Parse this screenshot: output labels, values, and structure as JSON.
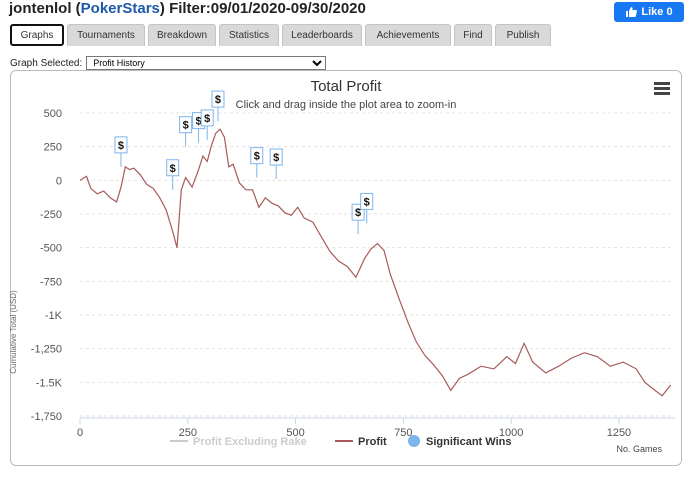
{
  "header": {
    "player": "jontenlol",
    "site": "PokerStars",
    "filter": "Filter:09/01/2020-09/30/2020",
    "like_label": "Like 0"
  },
  "tabs": [
    {
      "label": "Graphs",
      "active": true
    },
    {
      "label": "Tournaments",
      "active": false
    },
    {
      "label": "Breakdown",
      "active": false
    },
    {
      "label": "Statistics",
      "active": false
    },
    {
      "label": "Leaderboards",
      "active": false
    },
    {
      "label": "Achievements",
      "active": false
    },
    {
      "label": "Find",
      "active": false
    },
    {
      "label": "Publish",
      "active": false
    }
  ],
  "graph_selector": {
    "label": "Graph Selected:",
    "value": "Profit History"
  },
  "chart_data": {
    "type": "line",
    "title": "Total Profit",
    "subtitle": "Click and drag inside the plot area to zoom-in",
    "xlabel": "No. Games",
    "ylabel": "Cumulative Total (USD)",
    "xlim": [
      0,
      1380
    ],
    "ylim": [
      -1750,
      500
    ],
    "x_ticks": [
      0,
      250,
      500,
      750,
      1000,
      1250
    ],
    "x_tick_labels": [
      "0",
      "250",
      "500",
      "750",
      "1000",
      "1250"
    ],
    "y_ticks": [
      500,
      250,
      0,
      -250,
      -500,
      -750,
      -1000,
      -1250,
      -1500,
      -1750
    ],
    "y_tick_labels": [
      "500",
      "250",
      "0",
      "-250",
      "-500",
      "-750",
      "-1K",
      "-1,250",
      "-1.5K",
      "-1,750"
    ],
    "grid": "horizontal dashed",
    "legend": [
      "Profit Excluding Rake",
      "Profit",
      "Significant Wins"
    ],
    "legend_placement": "bottom",
    "colors": {
      "profit": "#a85a5a",
      "excl_rake": "#cccccc",
      "wins": "#7cb5ec"
    },
    "series": [
      {
        "name": "Profit",
        "x": [
          0,
          15,
          25,
          40,
          55,
          70,
          85,
          95,
          105,
          115,
          125,
          140,
          155,
          170,
          185,
          200,
          215,
          225,
          235,
          245,
          260,
          275,
          285,
          295,
          305,
          315,
          325,
          335,
          345,
          355,
          370,
          385,
          400,
          415,
          430,
          445,
          460,
          475,
          490,
          505,
          520,
          540,
          560,
          580,
          600,
          620,
          640,
          650,
          660,
          675,
          690,
          705,
          720,
          740,
          760,
          780,
          800,
          820,
          840,
          860,
          880,
          900,
          930,
          960,
          990,
          1010,
          1030,
          1050,
          1080,
          1110,
          1140,
          1170,
          1200,
          1230,
          1260,
          1290,
          1310,
          1330,
          1350,
          1370
        ],
        "values": [
          0,
          30,
          -60,
          -100,
          -80,
          -130,
          -160,
          -50,
          100,
          80,
          90,
          40,
          -30,
          -60,
          -130,
          -220,
          -380,
          -500,
          -70,
          20,
          -50,
          80,
          180,
          140,
          260,
          350,
          380,
          320,
          100,
          120,
          -20,
          -70,
          -70,
          -200,
          -130,
          -170,
          -190,
          -240,
          -260,
          -200,
          -280,
          -310,
          -420,
          -530,
          -600,
          -640,
          -720,
          -650,
          -580,
          -510,
          -470,
          -520,
          -700,
          -880,
          -1050,
          -1200,
          -1300,
          -1370,
          -1450,
          -1560,
          -1470,
          -1440,
          -1380,
          -1400,
          -1310,
          -1360,
          -1210,
          -1350,
          -1430,
          -1380,
          -1320,
          -1280,
          -1310,
          -1380,
          -1350,
          -1400,
          -1500,
          -1550,
          -1600,
          -1520
        ]
      },
      {
        "name": "Significant Wins",
        "x": [
          95,
          215,
          245,
          275,
          295,
          320,
          410,
          455,
          645,
          665
        ],
        "values": [
          100,
          -70,
          250,
          280,
          300,
          440,
          20,
          10,
          -400,
          -320
        ]
      }
    ],
    "win_label": "$"
  }
}
